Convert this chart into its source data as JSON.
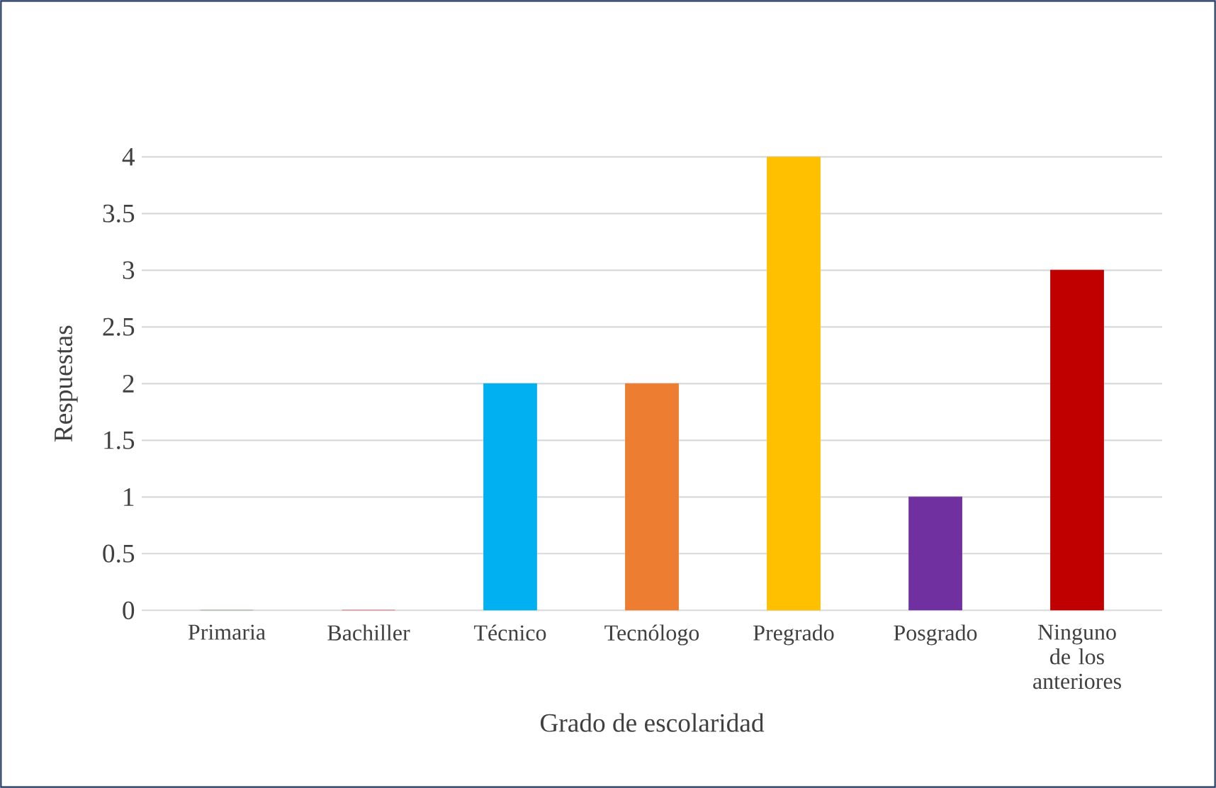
{
  "chart_data": {
    "type": "bar",
    "xlabel": "Grado de escolaridad",
    "ylabel": "Respuestas",
    "categories": [
      "Primaria",
      "Bachiller",
      "Técnico",
      "Tecnólogo",
      "Pregrado",
      "Posgrado",
      "Ninguno de los anteriores"
    ],
    "values": [
      0,
      0,
      2,
      2,
      4,
      1,
      3
    ],
    "colors": [
      "#548235",
      "#c00000",
      "#00b0f0",
      "#ed7d31",
      "#ffc000",
      "#7030a0",
      "#c00000"
    ],
    "ylim": [
      0,
      4
    ],
    "yticks": [
      0,
      0.5,
      1,
      1.5,
      2,
      2.5,
      3,
      3.5,
      4
    ],
    "grid": "y"
  }
}
